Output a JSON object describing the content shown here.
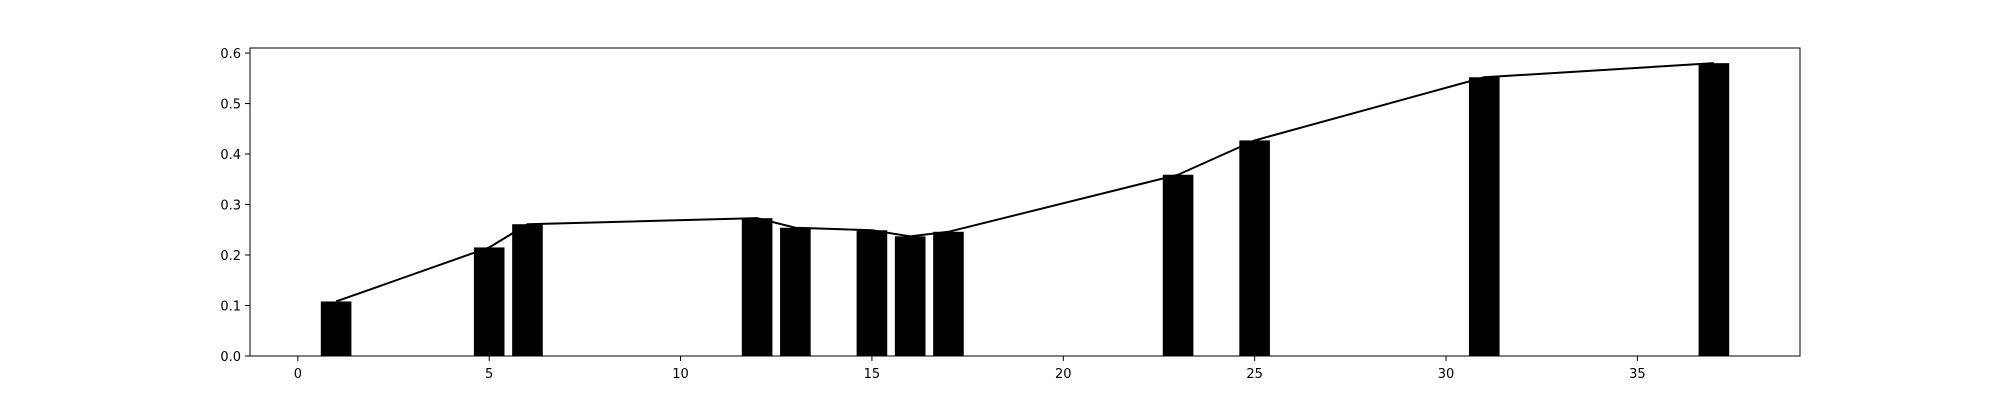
{
  "chart_data": {
    "type": "bar",
    "title": "",
    "xlabel": "",
    "ylabel": "",
    "xlim": [
      -1.25,
      39.25
    ],
    "ylim": [
      0.0,
      0.61
    ],
    "grid": false,
    "x_ticks": [
      "0",
      "5",
      "10",
      "15",
      "20",
      "25",
      "30",
      "35"
    ],
    "y_ticks": [
      "0.0",
      "0.1",
      "0.2",
      "0.3",
      "0.4",
      "0.5",
      "0.6"
    ],
    "bar_width": 0.8,
    "bar_color": "#000000",
    "line_color": "#000000",
    "series": [
      {
        "type": "bar",
        "x": [
          1,
          5,
          6,
          12,
          13,
          15,
          16,
          17,
          23,
          25,
          31,
          37
        ],
        "values": [
          0.108,
          0.215,
          0.261,
          0.273,
          0.254,
          0.249,
          0.237,
          0.246,
          0.359,
          0.427,
          0.552,
          0.58
        ]
      },
      {
        "type": "line",
        "x": [
          1,
          5,
          6,
          12,
          13,
          15,
          16,
          17,
          23,
          25,
          31,
          37
        ],
        "values": [
          0.108,
          0.215,
          0.261,
          0.273,
          0.254,
          0.249,
          0.237,
          0.246,
          0.359,
          0.427,
          0.552,
          0.58
        ]
      }
    ]
  }
}
